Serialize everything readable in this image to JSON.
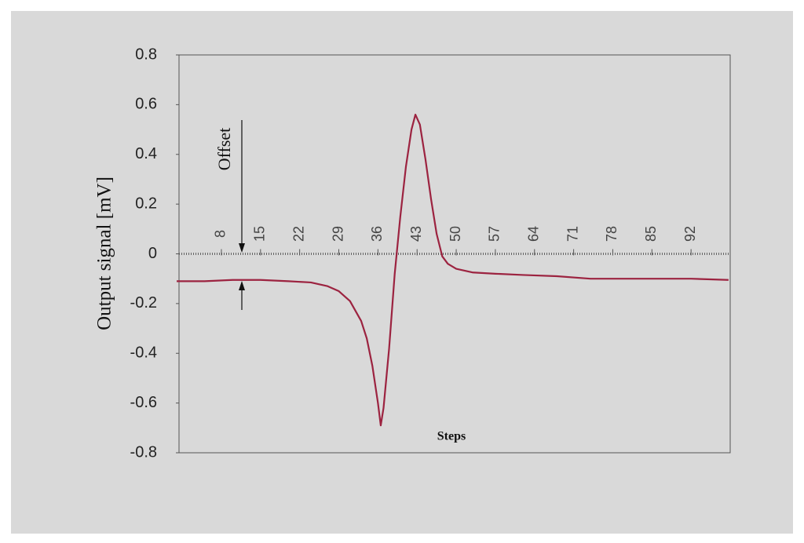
{
  "chart_data": {
    "type": "line",
    "xlabel": "Steps",
    "ylabel": "Output signal [mV]",
    "annotation": "Offset",
    "xlim": [
      0,
      99
    ],
    "xticks": [
      8,
      15,
      22,
      29,
      36,
      43,
      50,
      57,
      64,
      71,
      78,
      85,
      92
    ],
    "ylim": [
      -0.8,
      0.8
    ],
    "yticks": [
      -0.8,
      -0.6,
      -0.4,
      -0.2,
      0,
      0.2,
      0.4,
      0.6,
      0.8
    ],
    "series": [
      {
        "color": "#9c2340",
        "x": [
          0,
          5,
          10,
          15,
          20,
          24,
          27,
          29,
          31,
          33,
          34,
          35,
          36,
          36.5,
          37,
          38,
          39,
          40,
          41,
          42,
          42.7,
          43.5,
          44.5,
          45.5,
          46.5,
          47.5,
          48.5,
          50,
          53,
          57,
          62,
          68,
          74,
          80,
          86,
          92,
          98.7
        ],
        "values": [
          -0.11,
          -0.11,
          -0.105,
          -0.105,
          -0.11,
          -0.115,
          -0.13,
          -0.15,
          -0.19,
          -0.27,
          -0.34,
          -0.45,
          -0.6,
          -0.69,
          -0.62,
          -0.38,
          -0.08,
          0.15,
          0.35,
          0.5,
          0.56,
          0.52,
          0.38,
          0.22,
          0.08,
          -0.01,
          -0.04,
          -0.06,
          -0.075,
          -0.08,
          -0.085,
          -0.09,
          -0.1,
          -0.1,
          -0.1,
          -0.1,
          -0.105
        ]
      }
    ]
  }
}
